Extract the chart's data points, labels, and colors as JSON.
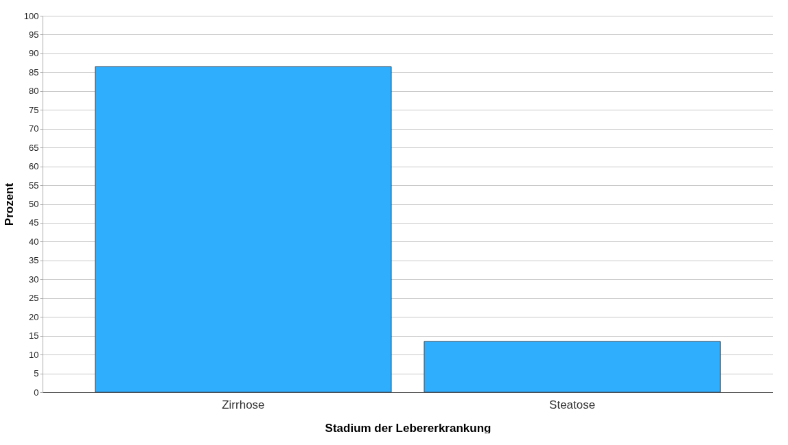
{
  "chart_data": {
    "type": "bar",
    "xlabel": "Stadium der Lebererkrankung",
    "ylabel": "Prozent",
    "categories": [
      "Zirrhose",
      "Steatose"
    ],
    "values": [
      86.5,
      13.5
    ],
    "color": "#30aefe",
    "ylim": [
      0,
      100
    ],
    "yticks": [
      0,
      5,
      10,
      15,
      20,
      25,
      30,
      35,
      40,
      45,
      50,
      55,
      60,
      65,
      70,
      75,
      80,
      85,
      90,
      95,
      100
    ],
    "grid": "y"
  }
}
